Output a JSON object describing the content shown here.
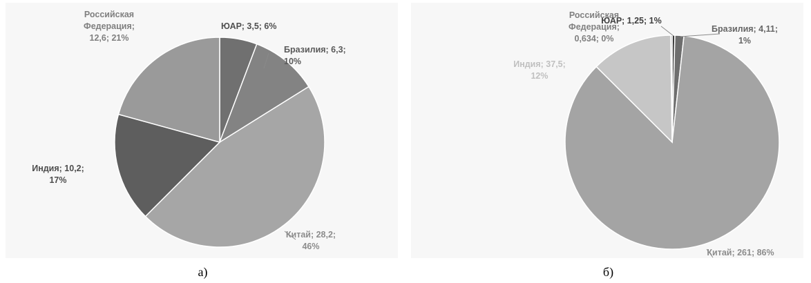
{
  "panels": [
    {
      "caption": "а)"
    },
    {
      "caption": "б)"
    }
  ],
  "chart_data": [
    {
      "type": "pie",
      "title": "",
      "slices": [
        {
          "name": "ЮАР",
          "value": 3.5,
          "percent": "6%",
          "color": "#707070",
          "label_lines": [
            "ЮАР; 3,5; 6%"
          ],
          "label_color": "#505050"
        },
        {
          "name": "Бразилия",
          "value": 6.3,
          "percent": "10%",
          "color": "#838383",
          "label_lines": [
            "Бразилия; 6,3;",
            "10%"
          ],
          "label_color": "#595959"
        },
        {
          "name": "Китай",
          "value": 28.2,
          "percent": "46%",
          "color": "#a6a6a6",
          "label_lines": [
            "Китай; 28,2;",
            "46%"
          ],
          "label_color": "#8c8c8c"
        },
        {
          "name": "Индия",
          "value": 10.2,
          "percent": "17%",
          "color": "#5e5e5e",
          "label_lines": [
            "Индия; 10,2;",
            "17%"
          ],
          "label_color": "#4d4d4d"
        },
        {
          "name": "Российская Федерация",
          "value": 12.6,
          "percent": "21%",
          "color": "#9a9a9a",
          "label_lines": [
            "Российская",
            "Федерация;",
            "12,6; 21%"
          ],
          "label_color": "#7f7f7f"
        }
      ]
    },
    {
      "type": "pie",
      "title": "",
      "slices": [
        {
          "name": "ЮАР",
          "value": 1.25,
          "percent": "1%",
          "color": "#3c3c3c",
          "label_lines": [
            "ЮАР; 1,25; 1%"
          ],
          "label_color": "#404040"
        },
        {
          "name": "Бразилия",
          "value": 4.11,
          "percent": "1%",
          "color": "#6e6e6e",
          "label_lines": [
            "Бразилия; 4,11;",
            "1%"
          ],
          "label_color": "#666666"
        },
        {
          "name": "Китай",
          "value": 261,
          "percent": "86%",
          "color": "#a4a4a4",
          "label_lines": [
            "Китай; 261; 86%"
          ],
          "label_color": "#8c8c8c"
        },
        {
          "name": "Индия",
          "value": 37.5,
          "percent": "12%",
          "color": "#c6c6c6",
          "label_lines": [
            "Индия; 37,5;",
            "12%"
          ],
          "label_color": "#c0c0c0"
        },
        {
          "name": "Российская Федерация",
          "value": 0.634,
          "percent": "0%",
          "color": "#808080",
          "label_lines": [
            "Российская",
            "Федерация;",
            "0,634; 0%"
          ],
          "label_color": "#808080"
        }
      ]
    }
  ]
}
